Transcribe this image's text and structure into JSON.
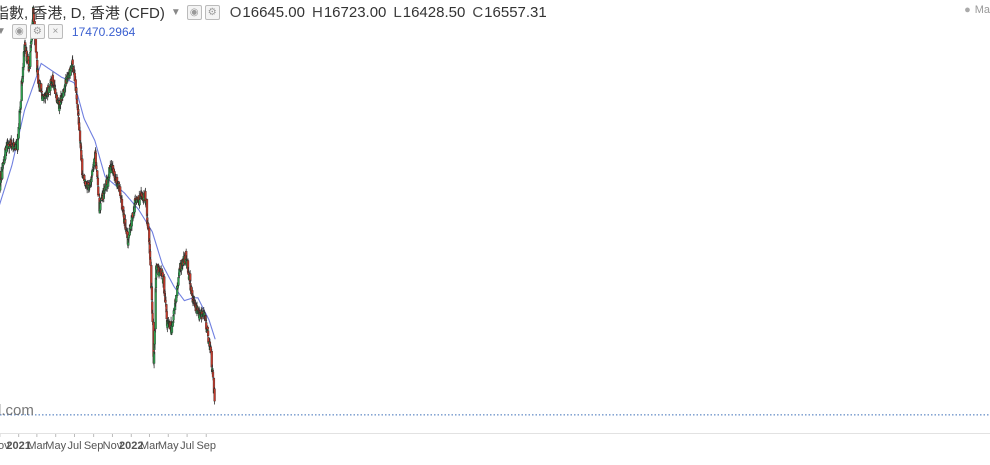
{
  "legend": {
    "title": "指數, 香港, D, 香港 (CFD)",
    "open_label": "O",
    "open": "16645.00",
    "high_label": "H",
    "high": "16723.00",
    "low_label": "L",
    "low": "16428.50",
    "close_label": "C",
    "close": "16557.31",
    "ma_value": "17470.2964"
  },
  "market_status": "Ma",
  "watermark": "l.com",
  "colors": {
    "up": "#2e9e4f",
    "down": "#c0392b",
    "wick": "#333333",
    "ma_line": "#6f7fe0",
    "last_price_line": "#3c6fb8"
  },
  "chart_data": {
    "type": "candlestick",
    "title": "指數, 香港, D, 香港 (CFD)",
    "x_tick_labels": [
      "Nov",
      "2021",
      "Mar",
      "May",
      "Jul",
      "Sep",
      "Nov",
      "2022",
      "Mar",
      "May",
      "Jul",
      "Sep"
    ],
    "ylim": [
      15900,
      31600
    ],
    "last_close": 16557.31,
    "series": [
      {
        "name": "Price",
        "kind": "ohlc",
        "keypoints": [
          {
            "date": "2020-10-26",
            "close": 24700
          },
          {
            "date": "2020-11-25",
            "close": 26400
          },
          {
            "date": "2020-12-28",
            "close": 26300
          },
          {
            "date": "2021-01-20",
            "close": 29900
          },
          {
            "date": "2021-02-05",
            "close": 29100
          },
          {
            "date": "2021-02-17",
            "close": 31200
          },
          {
            "date": "2021-03-05",
            "close": 28700
          },
          {
            "date": "2021-03-24",
            "close": 27900
          },
          {
            "date": "2021-04-20",
            "close": 28700
          },
          {
            "date": "2021-05-12",
            "close": 27800
          },
          {
            "date": "2021-06-07",
            "close": 28800
          },
          {
            "date": "2021-06-25",
            "close": 29300
          },
          {
            "date": "2021-07-12",
            "close": 27700
          },
          {
            "date": "2021-07-28",
            "close": 25100
          },
          {
            "date": "2021-08-20",
            "close": 24800
          },
          {
            "date": "2021-09-06",
            "close": 26100
          },
          {
            "date": "2021-09-20",
            "close": 24100
          },
          {
            "date": "2021-10-12",
            "close": 24900
          },
          {
            "date": "2021-10-27",
            "close": 25600
          },
          {
            "date": "2021-11-24",
            "close": 24800
          },
          {
            "date": "2021-12-20",
            "close": 22800
          },
          {
            "date": "2022-01-14",
            "close": 24300
          },
          {
            "date": "2022-02-15",
            "close": 24500
          },
          {
            "date": "2022-03-01",
            "close": 22800
          },
          {
            "date": "2022-03-09",
            "close": 20800
          },
          {
            "date": "2022-03-15",
            "close": 18400
          },
          {
            "date": "2022-03-23",
            "close": 21900
          },
          {
            "date": "2022-04-13",
            "close": 21600
          },
          {
            "date": "2022-04-27",
            "close": 19900
          },
          {
            "date": "2022-05-12",
            "close": 19700
          },
          {
            "date": "2022-06-09",
            "close": 21900
          },
          {
            "date": "2022-06-28",
            "close": 22300
          },
          {
            "date": "2022-07-19",
            "close": 20700
          },
          {
            "date": "2022-08-10",
            "close": 20200
          },
          {
            "date": "2022-08-26",
            "close": 20200
          },
          {
            "date": "2022-09-15",
            "close": 18900
          },
          {
            "date": "2022-09-28",
            "close": 17200
          }
        ]
      },
      {
        "name": "MA",
        "kind": "line",
        "keypoints": [
          {
            "date": "2020-10-26",
            "value": 24000
          },
          {
            "date": "2020-12-10",
            "value": 25600
          },
          {
            "date": "2021-01-20",
            "value": 27600
          },
          {
            "date": "2021-03-15",
            "value": 29300
          },
          {
            "date": "2021-05-20",
            "value": 28800
          },
          {
            "date": "2021-06-30",
            "value": 28600
          },
          {
            "date": "2021-08-01",
            "value": 27300
          },
          {
            "date": "2021-09-05",
            "value": 26500
          },
          {
            "date": "2021-10-08",
            "value": 25200
          },
          {
            "date": "2021-12-10",
            "value": 24600
          },
          {
            "date": "2022-01-25",
            "value": 24000
          },
          {
            "date": "2022-03-10",
            "value": 23200
          },
          {
            "date": "2022-04-12",
            "value": 22000
          },
          {
            "date": "2022-05-20",
            "value": 21200
          },
          {
            "date": "2022-06-22",
            "value": 20700
          },
          {
            "date": "2022-07-20",
            "value": 20800
          },
          {
            "date": "2022-08-05",
            "value": 20800
          },
          {
            "date": "2022-09-10",
            "value": 20000
          },
          {
            "date": "2022-09-30",
            "value": 19300
          }
        ]
      }
    ]
  }
}
